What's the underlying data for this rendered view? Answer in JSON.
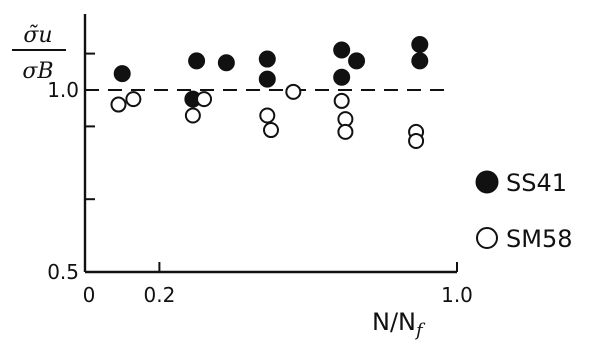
{
  "chart_data": {
    "type": "scatter",
    "xlabel": "N/N",
    "xlabel_sub": "f",
    "ylabel_num": "σ̃u",
    "ylabel_den": "σB",
    "xlim": [
      0,
      1.0
    ],
    "ylim": [
      0.5,
      1.2
    ],
    "x_ticks": [
      0,
      0.2,
      1.0
    ],
    "x_tick_labels": [
      "0",
      "0.2",
      "1.0"
    ],
    "y_ticks": [
      0.5,
      0.7,
      0.9,
      1.0,
      1.1
    ],
    "y_tick_labels": [
      "0.5",
      "1.0"
    ],
    "y_labeled_ticks": [
      0.5,
      1.0
    ],
    "reference_line": 1.0,
    "legend_position": "right",
    "series": [
      {
        "name": "SS41",
        "marker": "filled-circle",
        "points": [
          {
            "x": 0.1,
            "y": 1.045
          },
          {
            "x": 0.29,
            "y": 0.975
          },
          {
            "x": 0.3,
            "y": 1.08
          },
          {
            "x": 0.38,
            "y": 1.075
          },
          {
            "x": 0.49,
            "y": 1.085
          },
          {
            "x": 0.49,
            "y": 1.03
          },
          {
            "x": 0.69,
            "y": 1.11
          },
          {
            "x": 0.69,
            "y": 1.035
          },
          {
            "x": 0.73,
            "y": 1.08
          },
          {
            "x": 0.9,
            "y": 1.125
          },
          {
            "x": 0.9,
            "y": 1.08
          }
        ]
      },
      {
        "name": "SM58",
        "marker": "open-circle",
        "points": [
          {
            "x": 0.09,
            "y": 0.96
          },
          {
            "x": 0.13,
            "y": 0.975
          },
          {
            "x": 0.29,
            "y": 0.93
          },
          {
            "x": 0.32,
            "y": 0.975
          },
          {
            "x": 0.49,
            "y": 0.93
          },
          {
            "x": 0.5,
            "y": 0.89
          },
          {
            "x": 0.56,
            "y": 0.995
          },
          {
            "x": 0.69,
            "y": 0.97
          },
          {
            "x": 0.7,
            "y": 0.92
          },
          {
            "x": 0.7,
            "y": 0.885
          },
          {
            "x": 0.89,
            "y": 0.885
          },
          {
            "x": 0.89,
            "y": 0.86
          }
        ]
      }
    ]
  }
}
